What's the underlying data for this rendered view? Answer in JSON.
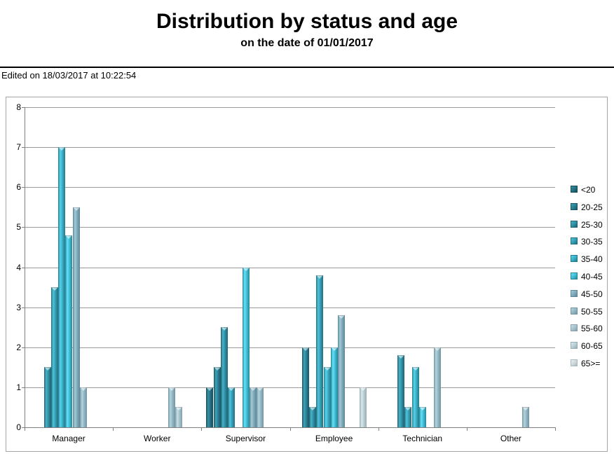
{
  "header": {
    "title": "Distribution by status and age",
    "subtitle": "on the date of 01/01/2017",
    "edited_note": "Edited on 18/03/2017 at 10:22:54"
  },
  "chart_data": {
    "type": "bar",
    "title": "Distribution by status and age",
    "subtitle": "on the date of 01/01/2017",
    "categories": [
      "Manager",
      "Worker",
      "Supervisor",
      "Employee",
      "Technician",
      "Other"
    ],
    "ylim": [
      0,
      8
    ],
    "y_ticks": [
      "0",
      "1",
      "2",
      "3",
      "4",
      "5",
      "6",
      "7",
      "8"
    ],
    "grid": true,
    "legend_position": "right",
    "axis_color": "#808080",
    "grid_color": "#9a9a9a",
    "series": [
      {
        "name": "<20",
        "base": "#246F80",
        "edge": "#164B58",
        "hi": "#3A92A6",
        "values": [
          0,
          0,
          1,
          0,
          0,
          0
        ]
      },
      {
        "name": "20-25",
        "base": "#297E91",
        "edge": "#1A5765",
        "hi": "#41A3B8",
        "values": [
          0,
          0,
          1.5,
          2,
          0,
          0
        ]
      },
      {
        "name": "25-30",
        "base": "#2E8DA2",
        "edge": "#1E6371",
        "hi": "#49B3CA",
        "values": [
          1.5,
          0,
          2.5,
          0.5,
          1.8,
          0
        ]
      },
      {
        "name": "30-35",
        "base": "#349CB3",
        "edge": "#216F7E",
        "hi": "#50C4DC",
        "values": [
          3.5,
          0,
          1,
          3.8,
          0.5,
          0
        ]
      },
      {
        "name": "35-40",
        "base": "#39ABC4",
        "edge": "#257B8B",
        "hi": "#58D4EE",
        "values": [
          7,
          0,
          0,
          1.5,
          1.5,
          0
        ]
      },
      {
        "name": "40-45",
        "base": "#3FBAD5",
        "edge": "#288797",
        "hi": "#63E2FA",
        "values": [
          4.8,
          0,
          4,
          2,
          0.5,
          0
        ]
      },
      {
        "name": "45-50",
        "base": "#7FA9B9",
        "edge": "#5E8797",
        "hi": "#A2CBD9",
        "values": [
          5.5,
          0,
          1,
          2.8,
          0,
          0
        ]
      },
      {
        "name": "50-55",
        "base": "#92B5C1",
        "edge": "#6F95A1",
        "hi": "#B4D5DF",
        "values": [
          1,
          1,
          1,
          0,
          2,
          0.5
        ]
      },
      {
        "name": "55-60",
        "base": "#A6C0C9",
        "edge": "#81A2AC",
        "hi": "#C7E0E7",
        "values": [
          0,
          0.5,
          0,
          0,
          0,
          0
        ]
      },
      {
        "name": "60-65",
        "base": "#BACBD1",
        "edge": "#94AEB5",
        "hi": "#D9EAEE",
        "values": [
          0,
          0,
          0,
          1,
          0,
          0
        ]
      },
      {
        "name": "65>=",
        "base": "#CDD7DA",
        "edge": "#A7BABF",
        "hi": "#E6F1F3",
        "values": [
          0,
          0,
          0,
          0,
          0,
          0
        ]
      }
    ]
  }
}
